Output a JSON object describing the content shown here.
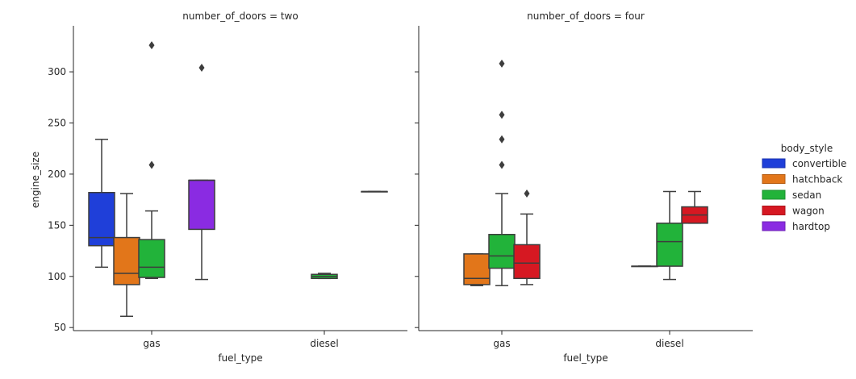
{
  "chart_data": {
    "type": "box",
    "xlabel": "fuel_type",
    "ylabel": "engine_size",
    "ylim": [
      47,
      345
    ],
    "y_ticks": [
      50,
      100,
      150,
      200,
      250,
      300
    ],
    "categories": [
      "gas",
      "diesel"
    ],
    "legend": {
      "title": "body_style",
      "position": "right",
      "entries": [
        {
          "name": "convertible",
          "color": "#1f3fd9"
        },
        {
          "name": "hatchback",
          "color": "#e2761a"
        },
        {
          "name": "sedan",
          "color": "#22b33a"
        },
        {
          "name": "wagon",
          "color": "#d61822"
        },
        {
          "name": "hardtop",
          "color": "#8a2be2"
        }
      ]
    },
    "facets": [
      {
        "title": "number_of_doors = two",
        "boxes": [
          {
            "category": "gas",
            "series": "convertible",
            "whisker_low": 109,
            "q1": 130,
            "median": 138,
            "q3": 182,
            "whisker_high": 234,
            "outliers": []
          },
          {
            "category": "gas",
            "series": "hatchback",
            "whisker_low": 61,
            "q1": 92,
            "median": 103,
            "q3": 138,
            "whisker_high": 181,
            "outliers": []
          },
          {
            "category": "gas",
            "series": "sedan",
            "whisker_low": 98,
            "q1": 99,
            "median": 109,
            "q3": 136,
            "whisker_high": 164,
            "outliers": [
              209,
              326
            ]
          },
          {
            "category": "gas",
            "series": "hardtop",
            "whisker_low": 97,
            "q1": 146,
            "median": 194,
            "q3": 194,
            "whisker_high": 194,
            "outliers": [
              304
            ]
          },
          {
            "category": "diesel",
            "series": "sedan",
            "whisker_low": 98,
            "q1": 98,
            "median": 100,
            "q3": 102,
            "whisker_high": 103,
            "outliers": []
          },
          {
            "category": "diesel",
            "series": "hardtop",
            "whisker_low": 183,
            "q1": 183,
            "median": 183,
            "q3": 183,
            "whisker_high": 183,
            "outliers": []
          }
        ]
      },
      {
        "title": "number_of_doors = four",
        "boxes": [
          {
            "category": "gas",
            "series": "hatchback",
            "whisker_low": 91,
            "q1": 92,
            "median": 98,
            "q3": 122,
            "whisker_high": 122,
            "outliers": []
          },
          {
            "category": "gas",
            "series": "sedan",
            "whisker_low": 91,
            "q1": 108,
            "median": 120,
            "q3": 141,
            "whisker_high": 181,
            "outliers": [
              209,
              234,
              258,
              308
            ]
          },
          {
            "category": "gas",
            "series": "wagon",
            "whisker_low": 92,
            "q1": 98,
            "median": 113,
            "q3": 131,
            "whisker_high": 161,
            "outliers": [
              181
            ]
          },
          {
            "category": "diesel",
            "series": "hatchback",
            "whisker_low": 110,
            "q1": 110,
            "median": 110,
            "q3": 110,
            "whisker_high": 110,
            "outliers": []
          },
          {
            "category": "diesel",
            "series": "sedan",
            "whisker_low": 97,
            "q1": 110,
            "median": 134,
            "q3": 152,
            "whisker_high": 183,
            "outliers": []
          },
          {
            "category": "diesel",
            "series": "wagon",
            "whisker_low": 152,
            "q1": 152,
            "median": 160,
            "q3": 168,
            "whisker_high": 183,
            "outliers": []
          }
        ]
      }
    ]
  }
}
